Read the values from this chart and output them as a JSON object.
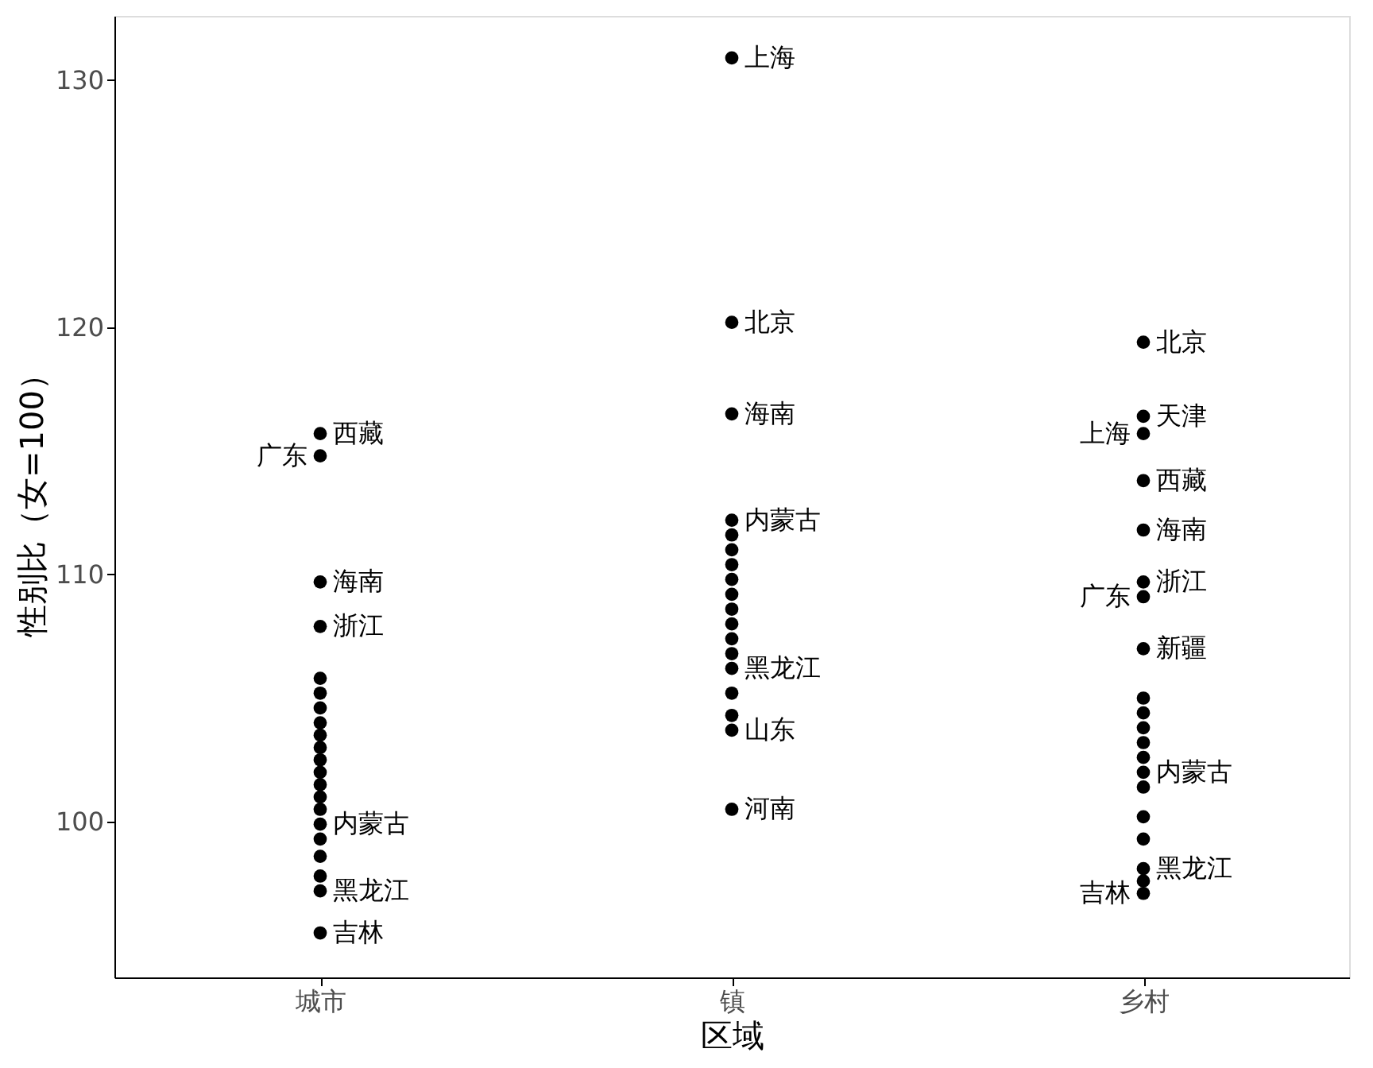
{
  "chart_data": {
    "type": "scatter",
    "xlabel": "区域",
    "ylabel": "性别比（女=100）",
    "categories": [
      "城市",
      "镇",
      "乡村"
    ],
    "ylim": [
      93.7,
      132.6
    ],
    "yticks": [
      100,
      110,
      120,
      130
    ],
    "grid": false,
    "legend": false,
    "marker": "circle",
    "series": [
      {
        "color": "#000000",
        "x": [
          "城市",
          "城市",
          "城市",
          "城市",
          "城市",
          "城市",
          "城市",
          "城市",
          "城市",
          "城市",
          "城市",
          "城市",
          "城市",
          "城市",
          "城市",
          "城市",
          "城市",
          "城市",
          "城市",
          "城市",
          "城市"
        ],
        "values": [
          115.7,
          114.8,
          109.7,
          107.9,
          105.8,
          105.2,
          104.6,
          104.0,
          103.5,
          103.0,
          102.5,
          102.0,
          101.5,
          101.0,
          100.5,
          99.9,
          99.3,
          98.6,
          97.8,
          97.2,
          95.5
        ]
      },
      {
        "color": "#000000",
        "x": [
          "镇",
          "镇",
          "镇",
          "镇",
          "镇",
          "镇",
          "镇",
          "镇",
          "镇",
          "镇",
          "镇",
          "镇",
          "镇",
          "镇",
          "镇",
          "镇",
          "镇",
          "镇"
        ],
        "values": [
          130.9,
          120.2,
          116.5,
          112.2,
          111.6,
          111.0,
          110.4,
          109.8,
          109.2,
          108.6,
          108.0,
          107.4,
          106.8,
          106.2,
          105.2,
          104.3,
          103.7,
          100.5
        ]
      },
      {
        "color": "#000000",
        "x": [
          "乡村",
          "乡村",
          "乡村",
          "乡村",
          "乡村",
          "乡村",
          "乡村",
          "乡村",
          "乡村",
          "乡村",
          "乡村",
          "乡村",
          "乡村",
          "乡村",
          "乡村",
          "乡村",
          "乡村",
          "乡村",
          "乡村",
          "乡村"
        ],
        "values": [
          119.4,
          116.4,
          115.7,
          113.8,
          111.8,
          109.7,
          109.1,
          107.0,
          105.0,
          104.4,
          103.8,
          103.2,
          102.6,
          102.0,
          101.4,
          100.2,
          99.3,
          98.1,
          97.6,
          97.1
        ]
      }
    ],
    "annotations": [
      {
        "text": "西藏",
        "x": "城市",
        "y": 115.7
      },
      {
        "text": "广东",
        "x": "城市",
        "y": 114.8
      },
      {
        "text": "海南",
        "x": "城市",
        "y": 109.7
      },
      {
        "text": "浙江",
        "x": "城市",
        "y": 107.9
      },
      {
        "text": "内蒙古",
        "x": "城市",
        "y": 99.9
      },
      {
        "text": "黑龙江",
        "x": "城市",
        "y": 97.2
      },
      {
        "text": "吉林",
        "x": "城市",
        "y": 95.5
      },
      {
        "text": "上海",
        "x": "镇",
        "y": 130.9
      },
      {
        "text": "北京",
        "x": "镇",
        "y": 120.2
      },
      {
        "text": "海南",
        "x": "镇",
        "y": 116.5
      },
      {
        "text": "内蒙古",
        "x": "镇",
        "y": 112.2
      },
      {
        "text": "黑龙江",
        "x": "镇",
        "y": 106.2
      },
      {
        "text": "山东",
        "x": "镇",
        "y": 103.7
      },
      {
        "text": "河南",
        "x": "镇",
        "y": 100.5
      },
      {
        "text": "北京",
        "x": "乡村",
        "y": 119.4
      },
      {
        "text": "天津",
        "x": "乡村",
        "y": 116.4
      },
      {
        "text": "上海",
        "x": "乡村",
        "y": 115.7
      },
      {
        "text": "西藏",
        "x": "乡村",
        "y": 113.8
      },
      {
        "text": "海南",
        "x": "乡村",
        "y": 111.8
      },
      {
        "text": "浙江",
        "x": "乡村",
        "y": 109.7
      },
      {
        "text": "广东",
        "x": "乡村",
        "y": 109.1
      },
      {
        "text": "新疆",
        "x": "乡村",
        "y": 107.0
      },
      {
        "text": "内蒙古",
        "x": "乡村",
        "y": 102.0
      },
      {
        "text": "黑龙江",
        "x": "乡村",
        "y": 98.1
      },
      {
        "text": "吉林",
        "x": "乡村",
        "y": 97.1
      }
    ]
  }
}
